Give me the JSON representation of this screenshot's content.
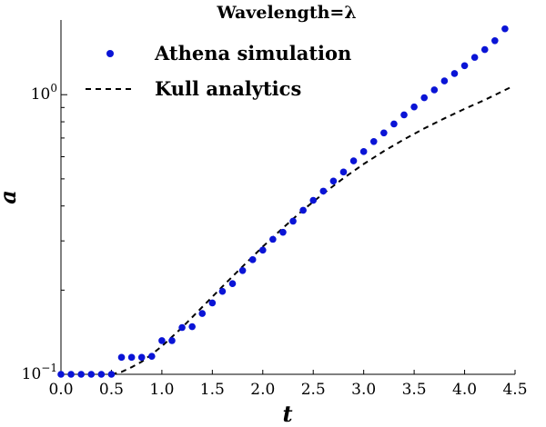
{
  "chart_data": {
    "type": "scatter",
    "title": "Wavelength=λ",
    "xlabel": "t",
    "ylabel": "a",
    "xlim": [
      0.0,
      4.5
    ],
    "ylim": [
      0.1,
      1.85
    ],
    "yscale": "log",
    "x_ticks": [
      "0.0",
      "0.5",
      "1.0",
      "1.5",
      "2.0",
      "2.5",
      "3.0",
      "3.5",
      "4.0",
      "4.5"
    ],
    "y_tick_labels": [
      {
        "value": 0.1,
        "base": "10",
        "exp": "−1"
      },
      {
        "value": 1.0,
        "base": "10",
        "exp": "0"
      }
    ],
    "legend": {
      "position": "upper-left",
      "entries": [
        {
          "label": "Athena simulation",
          "marker": "dot",
          "color": "#0a14d6"
        },
        {
          "label": "Kull analytics",
          "marker": "dashed-line",
          "color": "#000000"
        }
      ]
    },
    "series": [
      {
        "name": "Athena simulation",
        "style": "markers",
        "color": "#0a14d6",
        "x": [
          0.0,
          0.1,
          0.2,
          0.3,
          0.4,
          0.5,
          0.6,
          0.7,
          0.8,
          0.9,
          1.0,
          1.1,
          1.2,
          1.3,
          1.4,
          1.5,
          1.6,
          1.7,
          1.8,
          1.9,
          2.0,
          2.1,
          2.2,
          2.3,
          2.4,
          2.5,
          2.6,
          2.7,
          2.8,
          2.9,
          3.0,
          3.1,
          3.2,
          3.3,
          3.4,
          3.5,
          3.6,
          3.7,
          3.8,
          3.9,
          4.0,
          4.1,
          4.2,
          4.3,
          4.4
        ],
        "y": [
          0.1,
          0.1,
          0.1,
          0.1,
          0.1,
          0.1,
          0.115,
          0.115,
          0.115,
          0.116,
          0.132,
          0.132,
          0.147,
          0.148,
          0.165,
          0.18,
          0.198,
          0.211,
          0.235,
          0.257,
          0.278,
          0.304,
          0.322,
          0.353,
          0.386,
          0.419,
          0.452,
          0.491,
          0.529,
          0.58,
          0.626,
          0.68,
          0.73,
          0.786,
          0.847,
          0.904,
          0.975,
          1.04,
          1.12,
          1.19,
          1.27,
          1.36,
          1.45,
          1.56,
          1.72
        ]
      },
      {
        "name": "Kull analytics",
        "style": "dashed",
        "color": "#000000",
        "x": [
          0.5,
          0.6,
          0.7,
          0.8,
          0.9,
          1.0,
          1.2,
          1.4,
          1.6,
          1.8,
          2.0,
          2.2,
          2.4,
          2.6,
          2.8,
          3.0,
          3.2,
          3.4,
          3.6,
          3.8,
          4.0,
          4.2,
          4.45
        ],
        "y": [
          0.1,
          0.102,
          0.106,
          0.111,
          0.118,
          0.126,
          0.147,
          0.174,
          0.206,
          0.243,
          0.286,
          0.334,
          0.387,
          0.443,
          0.503,
          0.565,
          0.628,
          0.692,
          0.757,
          0.823,
          0.89,
          0.958,
          1.06
        ]
      }
    ]
  }
}
